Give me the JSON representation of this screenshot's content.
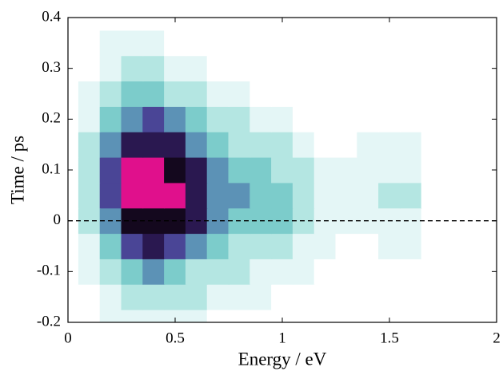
{
  "chart_data": {
    "type": "contour",
    "xlabel": "Energy / eV",
    "ylabel": "Time / ps",
    "xlim": [
      0,
      2
    ],
    "ylim": [
      -0.2,
      0.4
    ],
    "xticks": [
      0,
      0.5,
      1,
      1.5,
      2
    ],
    "yticks": [
      -0.2,
      -0.1,
      0,
      0.1,
      0.2,
      0.3,
      0.4
    ],
    "hline": 0,
    "zlim": [
      0,
      1
    ],
    "colormap": [
      "#ffffff",
      "#e4f6f6",
      "#b4e6e2",
      "#7ccccb",
      "#5c92b6",
      "#4a4596",
      "#2a1850",
      "#14081e",
      "#e0108c"
    ],
    "x": [
      0,
      0.1,
      0.2,
      0.3,
      0.4,
      0.5,
      0.6,
      0.7,
      0.8,
      0.9,
      1,
      1.1,
      1.2,
      1.3,
      1.4,
      1.5,
      1.6,
      1.7,
      1.8
    ],
    "y": [
      -0.2,
      -0.15,
      -0.1,
      -0.05,
      0,
      0.05,
      0.1,
      0.15,
      0.2,
      0.25,
      0.3,
      0.35,
      0.4
    ],
    "z": [
      [
        0,
        0.05,
        0.15,
        0.2,
        0.2,
        0.2,
        0.15,
        0.1,
        0.1,
        0.1,
        0.05,
        0.05,
        0,
        0,
        0,
        0,
        0,
        0,
        0
      ],
      [
        0,
        0.1,
        0.2,
        0.3,
        0.3,
        0.3,
        0.25,
        0.2,
        0.15,
        0.15,
        0.1,
        0.1,
        0.05,
        0.05,
        0.05,
        0.05,
        0.05,
        0.05,
        0
      ],
      [
        0,
        0.15,
        0.3,
        0.45,
        0.5,
        0.45,
        0.35,
        0.3,
        0.25,
        0.2,
        0.15,
        0.15,
        0.1,
        0.1,
        0.1,
        0.1,
        0.1,
        0.05,
        0
      ],
      [
        0,
        0.2,
        0.45,
        0.7,
        0.75,
        0.7,
        0.55,
        0.4,
        0.35,
        0.3,
        0.25,
        0.2,
        0.15,
        0.1,
        0.1,
        0.15,
        0.15,
        0.1,
        0
      ],
      [
        0,
        0.25,
        0.6,
        0.9,
        0.92,
        0.9,
        0.75,
        0.5,
        0.45,
        0.4,
        0.4,
        0.35,
        0.2,
        0.15,
        0.15,
        0.2,
        0.2,
        0.1,
        0
      ],
      [
        0,
        0.3,
        0.7,
        1,
        1,
        1,
        0.8,
        0.55,
        0.5,
        0.45,
        0.45,
        0.35,
        0.2,
        0.15,
        0.2,
        0.25,
        0.25,
        0.1,
        0
      ],
      [
        0,
        0.3,
        0.7,
        1,
        1,
        0.95,
        0.75,
        0.55,
        0.45,
        0.4,
        0.35,
        0.3,
        0.15,
        0.15,
        0.2,
        0.2,
        0.2,
        0.1,
        0
      ],
      [
        0,
        0.25,
        0.6,
        0.85,
        0.85,
        0.8,
        0.6,
        0.45,
        0.35,
        0.3,
        0.25,
        0.2,
        0.1,
        0.1,
        0.15,
        0.15,
        0.15,
        0.05,
        0
      ],
      [
        0,
        0.2,
        0.45,
        0.6,
        0.65,
        0.55,
        0.45,
        0.3,
        0.25,
        0.2,
        0.15,
        0.1,
        0.05,
        0.05,
        0.1,
        0.1,
        0.1,
        0.05,
        0
      ],
      [
        0,
        0.15,
        0.3,
        0.4,
        0.4,
        0.35,
        0.25,
        0.2,
        0.15,
        0.1,
        0.05,
        0.05,
        0,
        0,
        0.05,
        0.05,
        0.05,
        0,
        0
      ],
      [
        0,
        0.1,
        0.2,
        0.25,
        0.25,
        0.2,
        0.15,
        0.1,
        0.1,
        0.05,
        0.05,
        0,
        0,
        0,
        0,
        0,
        0.05,
        0,
        0
      ],
      [
        0,
        0.1,
        0.15,
        0.15,
        0.15,
        0.1,
        0.1,
        0.05,
        0.05,
        0,
        0,
        0,
        0,
        0,
        0,
        0,
        0,
        0,
        0
      ],
      [
        0,
        0.05,
        0.1,
        0.1,
        0.1,
        0.05,
        0.05,
        0.05,
        0,
        0,
        0,
        0,
        0,
        0,
        0,
        0,
        0,
        0,
        0
      ]
    ]
  }
}
